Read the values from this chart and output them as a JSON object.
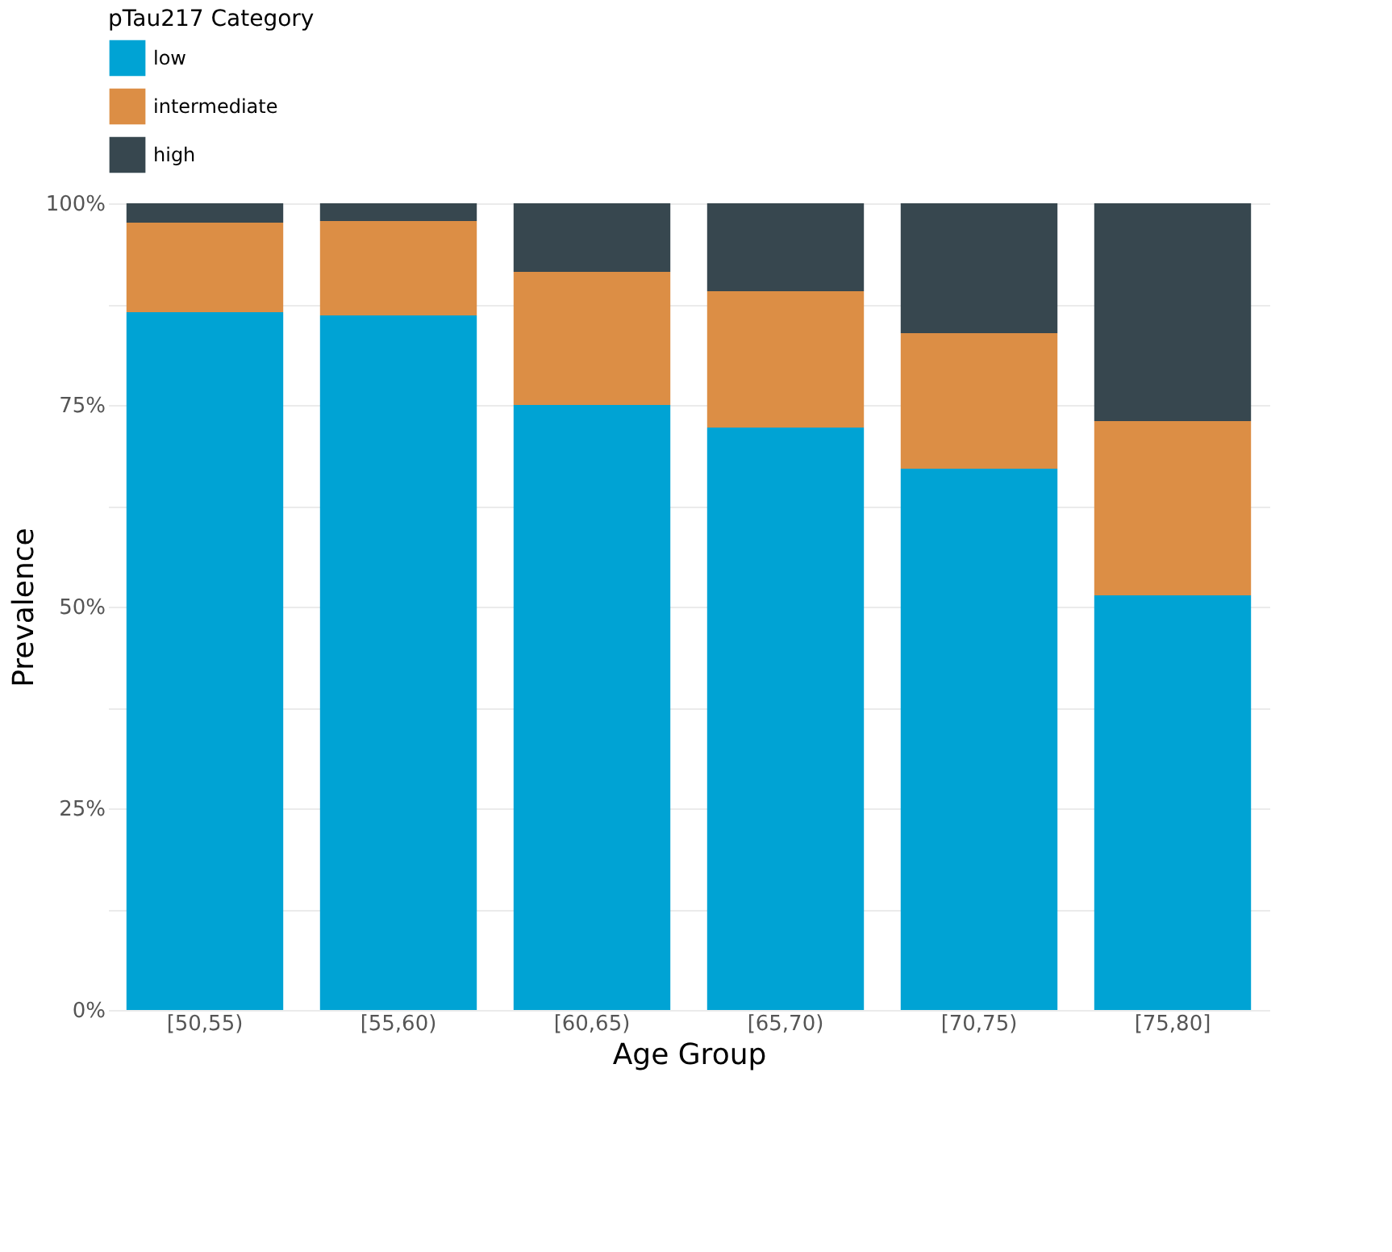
{
  "chart_data": {
    "type": "bar",
    "stacked": true,
    "xlabel": "Age Group",
    "ylabel": "Prevalence",
    "legend_title": "pTau217 Category",
    "legend": "top left",
    "grid": true,
    "categories": [
      "[50,55)",
      "[55,60)",
      "[60,65)",
      "[65,70)",
      "[70,75)",
      "[75,80]"
    ],
    "series": [
      {
        "name": "low",
        "color": "#00a3d4",
        "values": [
          86.5,
          86.1,
          75.0,
          72.2,
          67.1,
          51.4
        ]
      },
      {
        "name": "intermediate",
        "color": "#dc8e45",
        "values": [
          11.1,
          11.7,
          16.5,
          16.9,
          16.8,
          21.6
        ]
      },
      {
        "name": "high",
        "color": "#37474f",
        "values": [
          2.4,
          2.2,
          8.5,
          10.9,
          16.1,
          27.0
        ]
      }
    ],
    "ylim": [
      0,
      100
    ],
    "yticks": [
      {
        "value": 0,
        "label": "0%"
      },
      {
        "value": 12.5,
        "label": null
      },
      {
        "value": 25,
        "label": "25%"
      },
      {
        "value": 37.5,
        "label": null
      },
      {
        "value": 50,
        "label": "50%"
      },
      {
        "value": 62.5,
        "label": null
      },
      {
        "value": 75,
        "label": "75%"
      },
      {
        "value": 87.5,
        "label": null
      },
      {
        "value": 100,
        "label": "100%"
      }
    ]
  }
}
